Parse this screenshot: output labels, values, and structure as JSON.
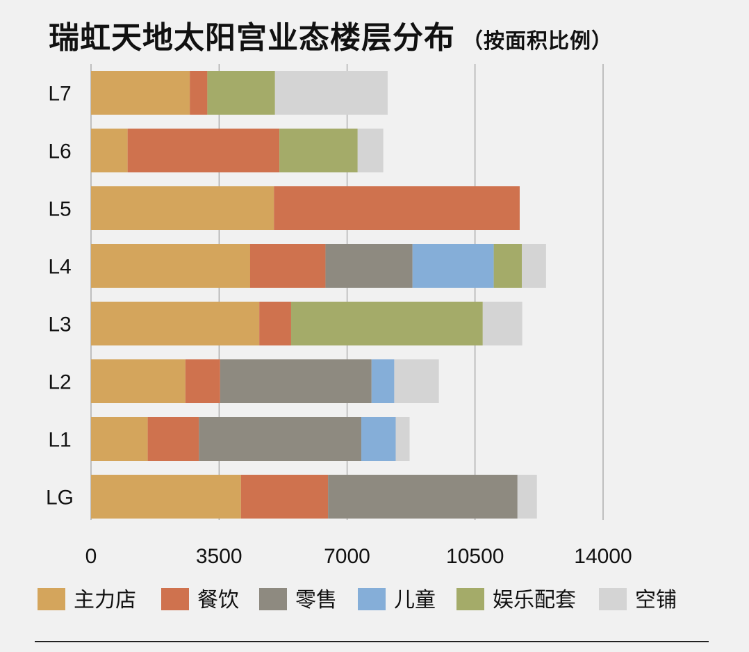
{
  "chart_data": {
    "type": "bar",
    "orientation": "horizontal",
    "stacked": true,
    "title": "瑞虹天地太阳宫业态楼层分布",
    "subtitle": "（按面积比例）",
    "categories": [
      "L7",
      "L6",
      "L5",
      "L4",
      "L3",
      "L2",
      "L1",
      "LG"
    ],
    "series": [
      {
        "name": "主力店",
        "color": "#d4a55c",
        "values": [
          2700,
          1000,
          5000,
          4350,
          4600,
          2580,
          1550,
          4100
        ]
      },
      {
        "name": "餐饮",
        "color": "#cf724e",
        "values": [
          480,
          4150,
          6720,
          2060,
          870,
          950,
          1400,
          2380
        ]
      },
      {
        "name": "零售",
        "color": "#8e8a80",
        "values": [
          0,
          0,
          0,
          2380,
          0,
          4140,
          4440,
          5180
        ]
      },
      {
        "name": "儿童",
        "color": "#85aed8",
        "values": [
          0,
          0,
          0,
          2220,
          0,
          620,
          940,
          0
        ]
      },
      {
        "name": "娱乐配套",
        "color": "#a4ab69",
        "values": [
          1850,
          2140,
          0,
          770,
          5240,
          0,
          0,
          0
        ]
      },
      {
        "name": "空铺",
        "color": "#d4d4d4",
        "values": [
          3080,
          700,
          0,
          660,
          1080,
          1220,
          380,
          530
        ]
      }
    ],
    "xlim": [
      0,
      14000
    ],
    "xticks": [
      0,
      3500,
      7000,
      10500,
      14000
    ],
    "grid": true,
    "legend_position": "bottom"
  }
}
